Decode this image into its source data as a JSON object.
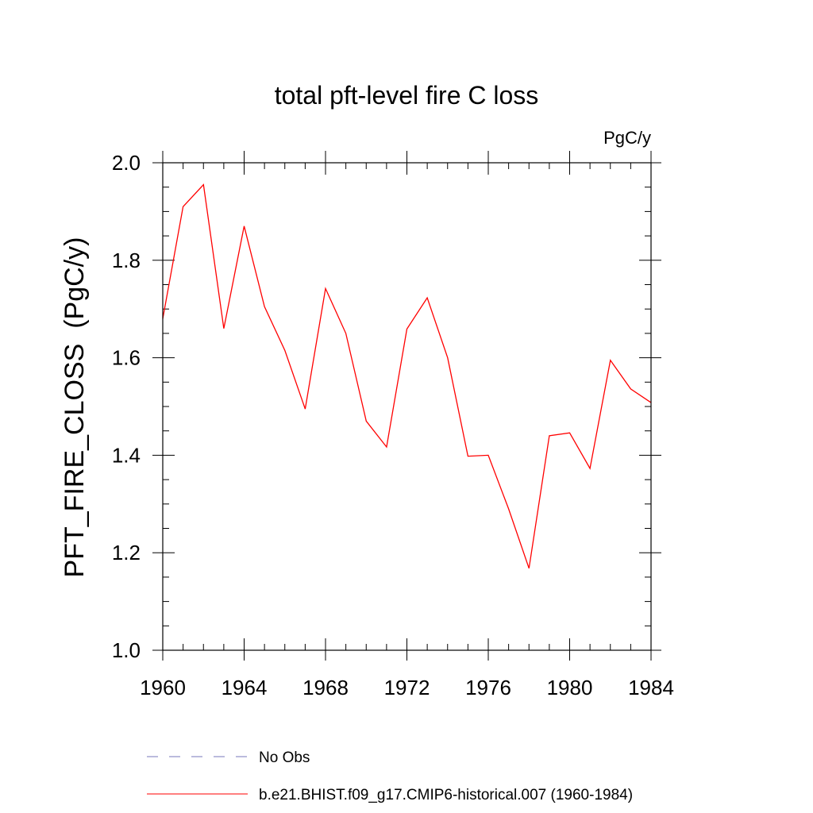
{
  "chart_data": {
    "type": "line",
    "title": "total pft-level fire C loss",
    "units_label": "PgC/y",
    "xlabel": "",
    "ylabel": "PFT_FIRE_CLOSS  (PgC/y)",
    "xlim": [
      1960,
      1984
    ],
    "ylim": [
      1.0,
      2.0
    ],
    "x_ticks": [
      1960,
      1964,
      1968,
      1972,
      1976,
      1980,
      1984
    ],
    "x_tick_labels": [
      "1960",
      "1964",
      "1968",
      "1972",
      "1976",
      "1980",
      "1984"
    ],
    "y_ticks": [
      1.0,
      1.2,
      1.4,
      1.6,
      1.8,
      2.0
    ],
    "y_tick_labels": [
      "1.0",
      "1.2",
      "1.4",
      "1.6",
      "1.8",
      "2.0"
    ],
    "grid": false,
    "legend_position": "bottom",
    "series": [
      {
        "name": "b.e21.BHIST.f09_g17.CMIP6-historical.007 (1960-1984)",
        "color": "#ff0000",
        "x": [
          1960,
          1961,
          1962,
          1963,
          1964,
          1965,
          1966,
          1967,
          1968,
          1969,
          1970,
          1971,
          1972,
          1973,
          1974,
          1975,
          1976,
          1977,
          1978,
          1979,
          1980,
          1981,
          1982,
          1983,
          1984
        ],
        "y": [
          1.68,
          1.91,
          1.955,
          1.66,
          1.87,
          1.705,
          1.615,
          1.495,
          1.742,
          1.65,
          1.47,
          1.417,
          1.659,
          1.723,
          1.6,
          1.398,
          1.4,
          1.29,
          1.168,
          1.44,
          1.446,
          1.373,
          1.595,
          1.536,
          1.508
        ]
      }
    ],
    "legend": [
      {
        "label": "No Obs",
        "color": "#7777bb",
        "style": "dashed"
      },
      {
        "label": "b.e21.BHIST.f09_g17.CMIP6-historical.007 (1960-1984)",
        "color": "#ff0000",
        "style": "solid"
      }
    ]
  }
}
